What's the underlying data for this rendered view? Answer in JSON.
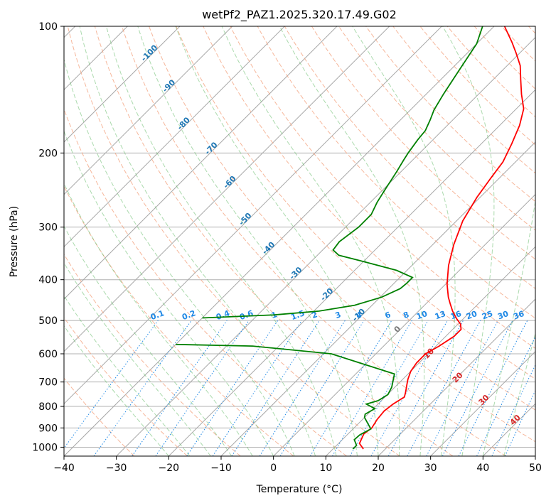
{
  "chart_data": {
    "type": "line",
    "chart_kind": "skew-T log-P diagram",
    "title": "wetPf2_PAZ1.2025.320.17.49.G02",
    "xlabel": "Temperature (°C)",
    "ylabel": "Pressure (hPa)",
    "xlim": [
      -40,
      50
    ],
    "ylim": [
      1050,
      100
    ],
    "y_scale": "log",
    "grid": true,
    "x_ticks": [
      "−40",
      "−30",
      "−20",
      "−10",
      "0",
      "10",
      "20",
      "30",
      "40",
      "50"
    ],
    "y_ticks": [
      "100",
      "200",
      "300",
      "400",
      "500",
      "600",
      "700",
      "800",
      "900",
      "1000"
    ],
    "isotherm_labels": {
      "color": "#1f77b4",
      "values": [
        "-100",
        "-90",
        "-80",
        "-70",
        "-60",
        "-50",
        "-40",
        "-30",
        "-20",
        "-10"
      ],
      "positions": [
        [
          -100,
          117
        ],
        [
          -90,
          140
        ],
        [
          -80,
          172
        ],
        [
          -70,
          197
        ],
        [
          -60,
          237
        ],
        [
          -50,
          290
        ],
        [
          -40,
          340
        ],
        [
          -30,
          390
        ],
        [
          -20,
          438
        ],
        [
          -10,
          490
        ]
      ]
    },
    "mixing_ratio_labels": {
      "color": "#1e88e5",
      "values": [
        "0.1",
        "0.2",
        "0.4",
        "0.6",
        "1",
        "1.5",
        "2",
        "3",
        "4",
        "6",
        "8",
        "10",
        "13",
        "16",
        "20",
        "25",
        "30",
        "36"
      ],
      "temps": [
        -22,
        -16,
        -9.5,
        -5,
        0.3,
        4.8,
        8,
        12.5,
        16.5,
        22,
        25.5,
        28.5,
        32,
        35,
        38,
        41,
        44,
        47
      ]
    },
    "wet_bulb_labels": {
      "values": [
        "0",
        "10",
        "20",
        "30",
        "40"
      ],
      "colors": [
        "#777777",
        "#d62728",
        "#d62728",
        "#d62728",
        "#d62728"
      ],
      "positions": [
        [
          24,
          530
        ],
        [
          30,
          605
        ],
        [
          35.5,
          690
        ],
        [
          40.5,
          780
        ],
        [
          46.5,
          870
        ]
      ]
    },
    "series": [
      {
        "color": "#ff0000",
        "points": [
          [
            15.8,
            1010
          ],
          [
            14,
            980
          ],
          [
            13,
            930
          ],
          [
            13.4,
            900
          ],
          [
            12.8,
            860
          ],
          [
            12.5,
            820
          ],
          [
            12.9,
            790
          ],
          [
            13.7,
            760
          ],
          [
            13,
            740
          ],
          [
            11.8,
            710
          ],
          [
            11,
            690
          ],
          [
            10,
            660
          ],
          [
            9.5,
            630
          ],
          [
            9.5,
            600
          ],
          [
            10.6,
            575
          ],
          [
            11.6,
            545
          ],
          [
            11.6,
            525
          ],
          [
            10.5,
            510
          ],
          [
            8.7,
            495
          ],
          [
            6.5,
            475
          ],
          [
            4.5,
            455
          ],
          [
            3,
            440
          ],
          [
            0.3,
            410
          ],
          [
            -3,
            370
          ],
          [
            -6,
            330
          ],
          [
            -8.8,
            290
          ],
          [
            -10.6,
            255
          ],
          [
            -11.6,
            230
          ],
          [
            -12.4,
            210
          ],
          [
            -14.2,
            190
          ],
          [
            -16.2,
            172
          ],
          [
            -18.6,
            157
          ],
          [
            -21.8,
            145
          ],
          [
            -24.7,
            134
          ],
          [
            -27.5,
            124
          ],
          [
            -30.6,
            116
          ],
          [
            -33.6,
            109
          ],
          [
            -37,
            102
          ],
          [
            -38,
            100
          ]
        ]
      },
      {
        "color": "#008000",
        "points": [
          [
            13.8,
            1010
          ],
          [
            13.8,
            990
          ],
          [
            12.3,
            960
          ],
          [
            12.4,
            935
          ],
          [
            13.4,
            905
          ],
          [
            10,
            850
          ],
          [
            9.5,
            835
          ],
          [
            10.3,
            810
          ],
          [
            7.8,
            790
          ],
          [
            9.4,
            775
          ],
          [
            10.1,
            750
          ],
          [
            9.4,
            720
          ],
          [
            7.4,
            670
          ],
          [
            -8.5,
            600
          ],
          [
            -25,
            575
          ],
          [
            -40,
            570
          ]
        ]
      },
      {
        "color": "#008000",
        "points": [
          [
            -40,
            493
          ],
          [
            -27,
            485
          ],
          [
            -19,
            475
          ],
          [
            -13.3,
            460
          ],
          [
            -9.7,
            440
          ],
          [
            -7.8,
            420
          ],
          [
            -7.6,
            408
          ],
          [
            -7.6,
            395
          ],
          [
            -12,
            380
          ],
          [
            -21,
            360
          ],
          [
            -25.9,
            350
          ],
          [
            -28,
            340
          ],
          [
            -28.4,
            325
          ],
          [
            -27.5,
            300
          ],
          [
            -27.5,
            280
          ],
          [
            -28.7,
            262
          ],
          [
            -29.6,
            245
          ],
          [
            -30.8,
            222
          ],
          [
            -31.7,
            208
          ],
          [
            -32.2,
            200
          ],
          [
            -32.9,
            186
          ],
          [
            -33.2,
            177
          ],
          [
            -34.3,
            167
          ],
          [
            -35.5,
            158
          ],
          [
            -36.7,
            145
          ],
          [
            -38.2,
            128
          ],
          [
            -40,
            110
          ],
          [
            -42.2,
            100
          ]
        ]
      }
    ]
  }
}
